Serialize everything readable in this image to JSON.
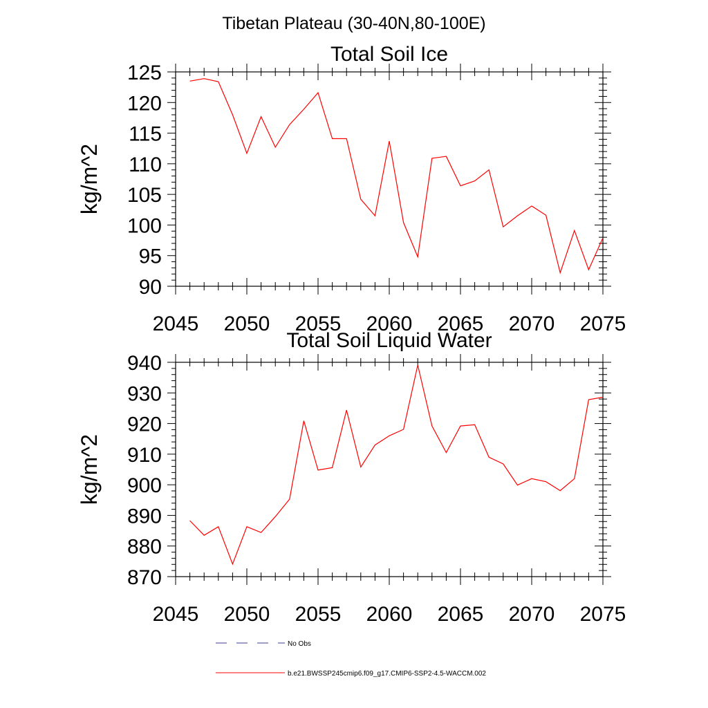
{
  "page": {
    "title": "Tibetan Plateau (30-40N,80-100E)"
  },
  "chart_data": [
    {
      "type": "line",
      "title": "Total Soil Ice",
      "xlabel": "",
      "ylabel": "kg/m^2",
      "xlim": [
        2045,
        2075
      ],
      "ylim": [
        90,
        125
      ],
      "xticks": [
        2045,
        2050,
        2055,
        2060,
        2065,
        2070,
        2075
      ],
      "yticks": [
        90,
        95,
        100,
        105,
        110,
        115,
        120,
        125
      ],
      "grid": false,
      "series": [
        {
          "color": "#ff0000",
          "x": [
            2046,
            2047,
            2048,
            2049,
            2050,
            2051,
            2052,
            2053,
            2054,
            2055,
            2056,
            2057,
            2058,
            2059,
            2060,
            2061,
            2062,
            2063,
            2064,
            2065,
            2066,
            2067,
            2068,
            2069,
            2070,
            2071,
            2072,
            2073,
            2074,
            2075
          ],
          "values": [
            123.5,
            123.9,
            123.4,
            118.0,
            111.7,
            117.7,
            112.7,
            116.4,
            118.9,
            121.6,
            114.1,
            114.1,
            104.2,
            101.5,
            113.7,
            100.4,
            94.8,
            110.9,
            111.2,
            106.4,
            107.2,
            109.0,
            99.7,
            101.5,
            103.1,
            101.6,
            92.2,
            99.1,
            92.7,
            97.9
          ]
        }
      ]
    },
    {
      "type": "line",
      "title": "Total Soil Liquid Water",
      "xlabel": "",
      "ylabel": "kg/m^2",
      "xlim": [
        2045,
        2075
      ],
      "ylim": [
        870,
        940
      ],
      "xticks": [
        2045,
        2050,
        2055,
        2060,
        2065,
        2070,
        2075
      ],
      "yticks": [
        870,
        880,
        890,
        900,
        910,
        920,
        930,
        940
      ],
      "grid": false,
      "series": [
        {
          "color": "#ff0000",
          "x": [
            2046,
            2047,
            2048,
            2049,
            2050,
            2051,
            2052,
            2053,
            2054,
            2055,
            2056,
            2057,
            2058,
            2059,
            2060,
            2061,
            2062,
            2063,
            2064,
            2065,
            2066,
            2067,
            2068,
            2069,
            2070,
            2071,
            2072,
            2073,
            2074,
            2075
          ],
          "values": [
            888.3,
            883.5,
            886.3,
            874.1,
            886.3,
            884.4,
            889.6,
            895.3,
            920.9,
            904.8,
            905.6,
            924.4,
            905.8,
            913.0,
            916.0,
            918.1,
            939.1,
            919.2,
            910.5,
            919.2,
            919.6,
            909.0,
            906.8,
            899.9,
            902.0,
            901.0,
            898.1,
            902.0,
            927.8,
            928.6
          ]
        }
      ]
    }
  ],
  "legend": {
    "items": [
      {
        "label": "No Obs",
        "color": "#3b3b8f",
        "style": "dashed"
      },
      {
        "label": "b.e21.BWSSP245cmip6.f09_g17.CMIP6-SSP2-4.5-WACCM.002",
        "color": "#ff0000",
        "style": "solid"
      }
    ]
  }
}
